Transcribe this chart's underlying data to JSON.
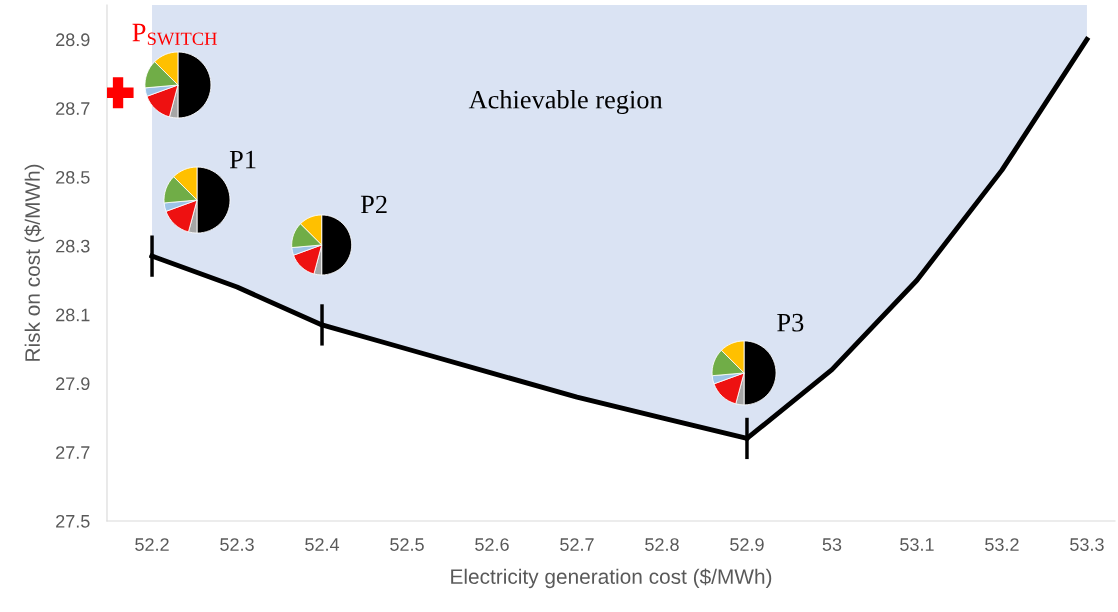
{
  "chart_data": {
    "type": "line",
    "xlabel": "Electricity generation cost ($/MWh)",
    "ylabel": "Risk on cost ($/MWh)",
    "xlim": [
      52.147,
      53.333
    ],
    "ylim": [
      27.5,
      29.0
    ],
    "xticks": [
      52.2,
      52.3,
      52.4,
      52.5,
      52.6,
      52.7,
      52.8,
      52.9,
      53,
      53.1,
      53.2,
      53.3
    ],
    "yticks": [
      27.5,
      27.7,
      27.9,
      28.1,
      28.3,
      28.5,
      28.7,
      28.9
    ],
    "grid": false,
    "legend": false,
    "series": [
      {
        "color": "#000000",
        "marker": "none",
        "x": [
          52.2,
          52.3,
          52.4,
          52.5,
          52.6,
          52.7,
          52.8,
          52.9,
          53.0,
          53.1,
          53.2,
          53.3
        ],
        "values": [
          28.27,
          28.18,
          28.07,
          28.0,
          27.93,
          27.86,
          27.8,
          27.74,
          27.94,
          28.2,
          28.52,
          28.9
        ],
        "lower": [
          28.27,
          28.18,
          28.07,
          28.0,
          27.93,
          27.86,
          27.8,
          27.74,
          27.94,
          28.2,
          28.52,
          28.9
        ],
        "upper": [
          29.0,
          29.0,
          29.0,
          29.0,
          29.0,
          29.0,
          29.0,
          29.0,
          29.0,
          29.0,
          29.0,
          29.0
        ]
      },
      {
        "type": "scatter",
        "color": "#000000",
        "marker": "circle",
        "x": [
          52.2,
          52.4,
          52.9
        ],
        "values": [
          28.27,
          28.07,
          27.74
        ],
        "errors": [
          0.06,
          0.06,
          0.06
        ]
      },
      {
        "type": "scatter",
        "color": "#ff0000",
        "marker": "cross",
        "x": [
          52.16
        ],
        "values": [
          28.745
        ]
      }
    ],
    "annotations": [
      "P$_{SWITCH}$",
      "P1",
      "P2",
      "P3",
      "Achievable region"
    ]
  }
}
